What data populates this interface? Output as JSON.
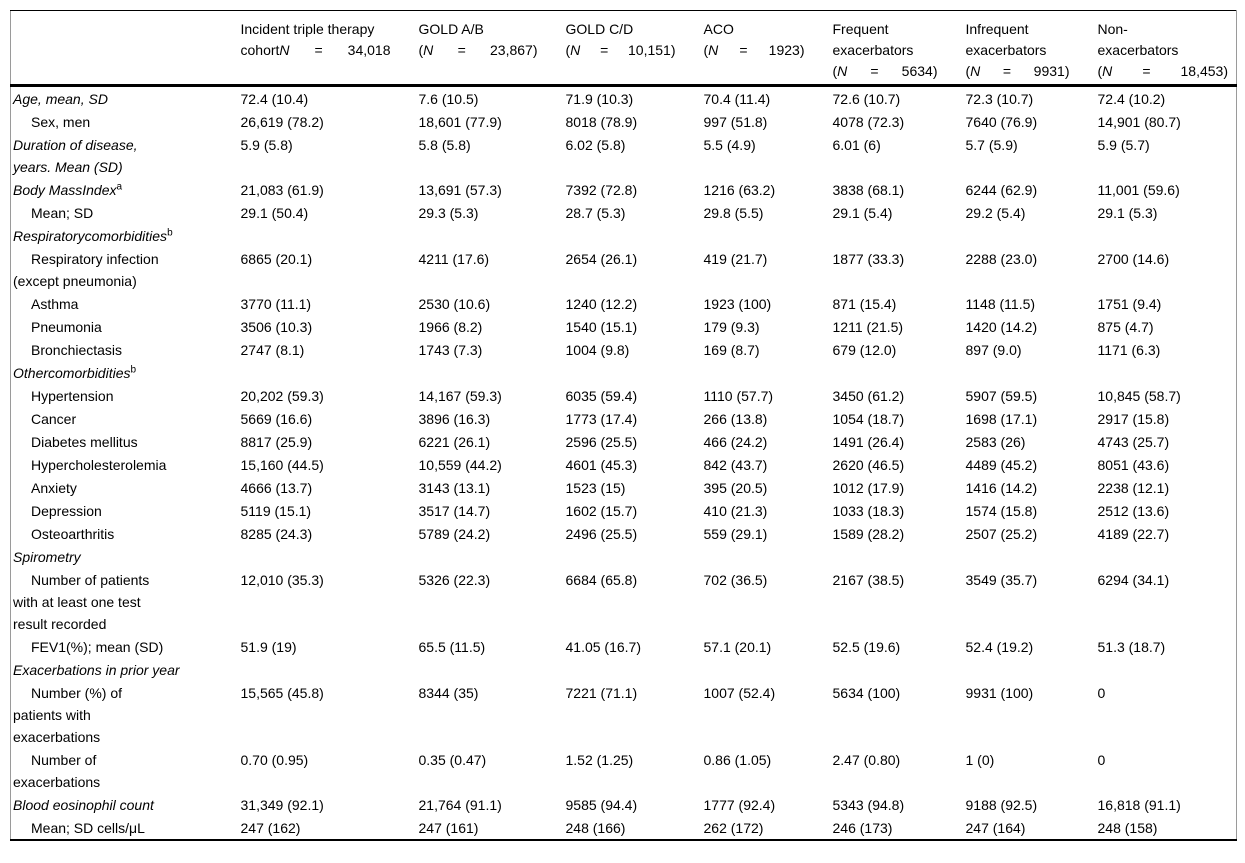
{
  "page": {
    "background": "#ffffff",
    "text_color": "#000000",
    "rule_color": "#000000",
    "side_rule_color": "#9a9a9a"
  },
  "table": {
    "columns": [
      {
        "title": ""
      },
      {
        "title": "Incident triple therapy",
        "n_open": "cohort",
        "n_symbol": "N",
        "n_eq": "=",
        "n_value": "34,018"
      },
      {
        "title": "GOLD A/B",
        "n_open": "(",
        "n_symbol": "N",
        "n_eq": "=",
        "n_value": "23,867)"
      },
      {
        "title": "GOLD C/D",
        "n_open": "(",
        "n_symbol": "N",
        "n_eq": "=",
        "n_value": "10,151)"
      },
      {
        "title": "ACO",
        "n_open": "(",
        "n_symbol": "N",
        "n_eq": "=",
        "n_value": "1923)"
      },
      {
        "title": "Frequent\nexacerbators",
        "n_open": "(",
        "n_symbol": "N",
        "n_eq": "=",
        "n_value": "5634)"
      },
      {
        "title": "Infrequent\nexacerbators",
        "n_open": "(",
        "n_symbol": "N",
        "n_eq": "=",
        "n_value": "9931)"
      },
      {
        "title": "Non-\nexacerbators",
        "n_open": "(",
        "n_symbol": "N",
        "n_eq": "=",
        "n_value": "18,453)"
      }
    ],
    "rows": [
      {
        "label": "Age, mean, SD",
        "style": "section",
        "values": [
          "72.4 (10.4)",
          "7.6 (10.5)",
          "71.9 (10.3)",
          "70.4 (11.4)",
          "72.6 (10.7)",
          "72.3 (10.7)",
          "72.4 (10.2)"
        ]
      },
      {
        "label": "Sex, men",
        "style": "item",
        "values": [
          "26,619 (78.2)",
          "18,601 (77.9)",
          "8018 (78.9)",
          "997 (51.8)",
          "4078 (72.3)",
          "7640 (76.9)",
          "14,901 (80.7)"
        ]
      },
      {
        "label": "Duration of disease,\nyears. Mean (SD)",
        "style": "section",
        "values": [
          "5.9 (5.8)",
          "5.8 (5.8)",
          "6.02 (5.8)",
          "5.5 (4.9)",
          "6.01 (6)",
          "5.7 (5.9)",
          "5.9 (5.7)"
        ]
      },
      {
        "label": "Body MassIndex",
        "sup": "a",
        "style": "section",
        "values": [
          "21,083 (61.9)",
          "13,691 (57.3)",
          "7392 (72.8)",
          "1216 (63.2)",
          "3838 (68.1)",
          "6244 (62.9)",
          "11,001 (59.6)"
        ]
      },
      {
        "label": "Mean; SD",
        "style": "item",
        "values": [
          "29.1 (50.4)",
          "29.3 (5.3)",
          "28.7 (5.3)",
          "29.8 (5.5)",
          "29.1 (5.4)",
          "29.2 (5.4)",
          "29.1 (5.3)"
        ]
      },
      {
        "label": "Respiratorycomorbidities",
        "sup": "b",
        "style": "section",
        "values": [
          "",
          "",
          "",
          "",
          "",
          "",
          ""
        ]
      },
      {
        "label": "Respiratory infection\n(except pneumonia)",
        "style": "item",
        "values": [
          "6865 (20.1)",
          "4211 (17.6)",
          "2654 (26.1)",
          "419 (21.7)",
          "1877 (33.3)",
          "2288 (23.0)",
          "2700 (14.6)"
        ]
      },
      {
        "label": "Asthma",
        "style": "item",
        "values": [
          "3770 (11.1)",
          "2530 (10.6)",
          "1240 (12.2)",
          "1923 (100)",
          "871 (15.4)",
          "1148 (11.5)",
          "1751 (9.4)"
        ]
      },
      {
        "label": "Pneumonia",
        "style": "item",
        "values": [
          "3506 (10.3)",
          "1966 (8.2)",
          "1540 (15.1)",
          "179 (9.3)",
          "1211 (21.5)",
          "1420 (14.2)",
          "875 (4.7)"
        ]
      },
      {
        "label": "Bronchiectasis",
        "style": "item",
        "values": [
          "2747 (8.1)",
          "1743 (7.3)",
          "1004 (9.8)",
          "169 (8.7)",
          "679 (12.0)",
          "897 (9.0)",
          "1171 (6.3)"
        ]
      },
      {
        "label": "Othercomorbidities",
        "sup": "b",
        "style": "section",
        "values": [
          "",
          "",
          "",
          "",
          "",
          "",
          ""
        ]
      },
      {
        "label": "Hypertension",
        "style": "item",
        "values": [
          "20,202 (59.3)",
          "14,167 (59.3)",
          "6035 (59.4)",
          "1110 (57.7)",
          "3450 (61.2)",
          "5907 (59.5)",
          "10,845 (58.7)"
        ]
      },
      {
        "label": "Cancer",
        "style": "item",
        "values": [
          "5669 (16.6)",
          "3896 (16.3)",
          "1773 (17.4)",
          "266 (13.8)",
          "1054 (18.7)",
          "1698 (17.1)",
          "2917 (15.8)"
        ]
      },
      {
        "label": "Diabetes mellitus",
        "style": "item",
        "values": [
          "8817 (25.9)",
          "6221 (26.1)",
          "2596 (25.5)",
          "466 (24.2)",
          "1491 (26.4)",
          "2583 (26)",
          "4743 (25.7)"
        ]
      },
      {
        "label": "Hypercholesterolemia",
        "style": "item",
        "values": [
          "15,160 (44.5)",
          "10,559 (44.2)",
          "4601 (45.3)",
          "842 (43.7)",
          "2620 (46.5)",
          "4489 (45.2)",
          "8051 (43.6)"
        ]
      },
      {
        "label": "Anxiety",
        "style": "item",
        "values": [
          "4666 (13.7)",
          "3143 (13.1)",
          "1523 (15)",
          "395 (20.5)",
          "1012 (17.9)",
          "1416 (14.2)",
          "2238 (12.1)"
        ]
      },
      {
        "label": "Depression",
        "style": "item",
        "values": [
          "5119 (15.1)",
          "3517 (14.7)",
          "1602 (15.7)",
          "410 (21.3)",
          "1033 (18.3)",
          "1574 (15.8)",
          "2512 (13.6)"
        ]
      },
      {
        "label": "Osteoarthritis",
        "style": "item",
        "values": [
          "8285 (24.3)",
          "5789 (24.2)",
          "2496 (25.5)",
          "559 (29.1)",
          "1589 (28.2)",
          "2507 (25.2)",
          "4189 (22.7)"
        ]
      },
      {
        "label": "Spirometry",
        "style": "section",
        "values": [
          "",
          "",
          "",
          "",
          "",
          "",
          ""
        ]
      },
      {
        "label": "Number of patients\nwith at least one test\nresult recorded",
        "style": "item",
        "values": [
          "12,010 (35.3)",
          "5326 (22.3)",
          "6684 (65.8)",
          "702 (36.5)",
          "2167 (38.5)",
          "3549 (35.7)",
          "6294 (34.1)"
        ]
      },
      {
        "label": "FEV1(%); mean (SD)",
        "style": "item",
        "values": [
          "51.9 (19)",
          "65.5 (11.5)",
          "41.05 (16.7)",
          "57.1 (20.1)",
          "52.5 (19.6)",
          "52.4 (19.2)",
          "51.3 (18.7)"
        ]
      },
      {
        "label": "Exacerbations in prior year",
        "style": "section",
        "values": [
          "",
          "",
          "",
          "",
          "",
          "",
          ""
        ]
      },
      {
        "label": "Number (%) of\npatients with\nexacerbations",
        "style": "item",
        "values": [
          "15,565 (45.8)",
          "8344 (35)",
          "7221 (71.1)",
          "1007 (52.4)",
          "5634 (100)",
          "9931 (100)",
          "0"
        ]
      },
      {
        "label": "Number of\nexacerbations",
        "style": "item",
        "values": [
          "0.70 (0.95)",
          "0.35 (0.47)",
          "1.52 (1.25)",
          "0.86 (1.05)",
          "2.47 (0.80)",
          "1 (0)",
          "0"
        ]
      },
      {
        "label": "Blood eosinophil count",
        "style": "section",
        "values": [
          "31,349 (92.1)",
          "21,764 (91.1)",
          "9585 (94.4)",
          "1777 (92.4)",
          "5343 (94.8)",
          "9188 (92.5)",
          "16,818 (91.1)"
        ]
      },
      {
        "label": "Mean; SD cells/μL",
        "style": "item",
        "values": [
          "247 (162)",
          "247 (161)",
          "248 (166)",
          "262 (172)",
          "246 (173)",
          "247 (164)",
          "248 (158)"
        ]
      }
    ]
  }
}
